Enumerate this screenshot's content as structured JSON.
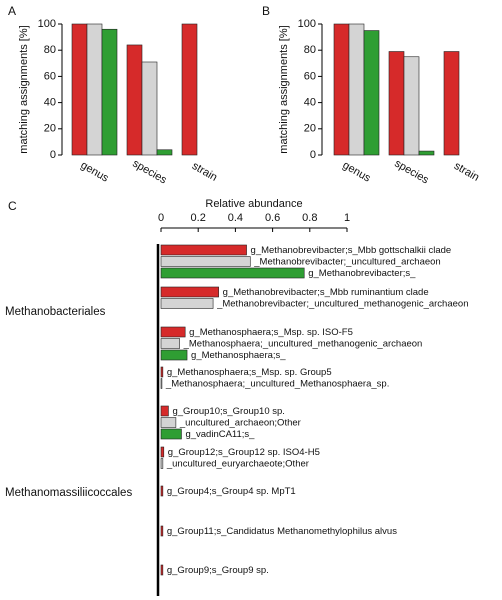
{
  "chart_data": [
    {
      "type": "bar",
      "label": "A",
      "ylabel": "matching assignments [%]",
      "categories": [
        "genus",
        "species",
        "strain"
      ],
      "series": [
        {
          "color": "#d62a2a",
          "values": [
            100,
            84,
            100
          ]
        },
        {
          "color": "#d4d4d4",
          "values": [
            100,
            71,
            0
          ]
        },
        {
          "color": "#2f9e33",
          "values": [
            96,
            4,
            0
          ]
        }
      ],
      "ylim": [
        0,
        100
      ],
      "yticks": [
        0,
        20,
        40,
        60,
        80,
        100
      ]
    },
    {
      "type": "bar",
      "label": "B",
      "ylabel": "matching assignments [%]",
      "categories": [
        "genus",
        "species",
        "strain"
      ],
      "series": [
        {
          "color": "#d62a2a",
          "values": [
            100,
            79,
            79
          ]
        },
        {
          "color": "#d4d4d4",
          "values": [
            100,
            75,
            0
          ]
        },
        {
          "color": "#2f9e33",
          "values": [
            95,
            3,
            0
          ]
        }
      ],
      "ylim": [
        0,
        100
      ],
      "yticks": [
        0,
        20,
        40,
        60,
        80,
        100
      ]
    },
    {
      "type": "hbar",
      "label": "C",
      "xlabel": "Relative abundance",
      "xlim": [
        0,
        1
      ],
      "xticks": [
        0,
        0.2,
        0.4,
        0.6,
        0.8,
        1
      ],
      "groups": [
        {
          "name": "Methanobacteriales",
          "clusters": [
            [
              {
                "label": "g_Methanobrevibacter;s_Mbb gottschalkii clade",
                "value": 0.46,
                "color": "#d62a2a"
              },
              {
                "label": "_Methanobrevibacter;_uncultured_archaeon",
                "value": 0.48,
                "color": "#d4d4d4"
              },
              {
                "label": "g_Methanobrevibacter;s_",
                "value": 0.77,
                "color": "#2f9e33"
              }
            ],
            [
              {
                "label": "g_Methanobrevibacter;s_Mbb ruminantium clade",
                "value": 0.31,
                "color": "#d62a2a"
              },
              {
                "label": "_Methanobrevibacter;_uncultured_methanogenic_archaeon",
                "value": 0.28,
                "color": "#d4d4d4"
              }
            ],
            [
              {
                "label": "g_Methanosphaera;s_Msp. sp. ISO-F5",
                "value": 0.13,
                "color": "#d62a2a"
              },
              {
                "label": "_Methanosphaera;_uncultured_methanogenic_archaeon",
                "value": 0.1,
                "color": "#d4d4d4"
              },
              {
                "label": "g_Methanosphaera;s_",
                "value": 0.14,
                "color": "#2f9e33"
              }
            ],
            [
              {
                "label": "g_Methanosphaera;s_Msp. sp. Group5",
                "value": 0.01,
                "color": "#d62a2a"
              },
              {
                "label": "_Methanosphaera;_uncultured_Methanosphaera_sp.",
                "value": 0.005,
                "color": "#d4d4d4"
              }
            ]
          ]
        },
        {
          "name": "Methanomassiliicoccales",
          "clusters": [
            [
              {
                "label": "g_Group10;s_Group10 sp.",
                "value": 0.04,
                "color": "#d62a2a"
              },
              {
                "label": "_uncultured_archaeon;Other",
                "value": 0.08,
                "color": "#d4d4d4"
              },
              {
                "label": "g_vadinCA11;s_",
                "value": 0.11,
                "color": "#2f9e33"
              }
            ],
            [
              {
                "label": "g_Group12;s_Group12 sp. ISO4-H5",
                "value": 0.015,
                "color": "#d62a2a"
              },
              {
                "label": "_uncultured_euryarchaeote;Other",
                "value": 0.01,
                "color": "#d4d4d4"
              }
            ],
            [
              {
                "label": "g_Group4;s_Group4 sp. MpT1",
                "value": 0.01,
                "color": "#d62a2a"
              }
            ],
            [
              {
                "label": "g_Group11;s_Candidatus Methanomethylophilus alvus",
                "value": 0.01,
                "color": "#d62a2a"
              }
            ],
            [
              {
                "label": "g_Group9;s_Group9 sp.",
                "value": 0.01,
                "color": "#d62a2a"
              }
            ]
          ]
        }
      ]
    }
  ]
}
